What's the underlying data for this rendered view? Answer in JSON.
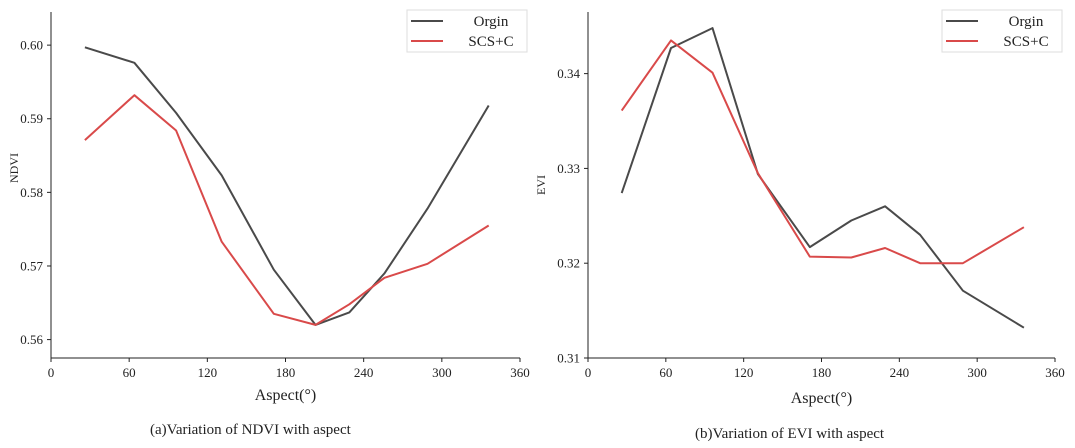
{
  "chart_data": [
    {
      "type": "line",
      "xlabel": "Aspect(°)",
      "ylabel": "NDVI",
      "caption": "(a)Variation of NDVI with aspect",
      "xlim": [
        0,
        360
      ],
      "ylim": [
        0.5575,
        0.6045
      ],
      "xticks": [
        "0",
        "60",
        "120",
        "180",
        "240",
        "300",
        "360"
      ],
      "yticks": [
        "0.56",
        "0.57",
        "0.58",
        "0.59",
        "0.60"
      ],
      "legend_position": "top-right",
      "x": [
        26,
        64,
        96,
        131,
        171,
        203,
        229,
        256,
        289,
        336
      ],
      "series": [
        {
          "name": "Orgin",
          "color": "#4a4a4a",
          "values": [
            0.5997,
            0.5976,
            0.5908,
            0.5823,
            0.5695,
            0.562,
            0.5637,
            0.569,
            0.5778,
            0.5918
          ]
        },
        {
          "name": "SCS+C",
          "color": "#d94a4a",
          "values": [
            0.5871,
            0.5932,
            0.5884,
            0.5733,
            0.5635,
            0.562,
            0.5648,
            0.5684,
            0.5703,
            0.5755
          ]
        }
      ]
    },
    {
      "type": "line",
      "xlabel": "Aspect(°)",
      "ylabel": "EVI",
      "caption": "(b)Variation of EVI with aspect",
      "xlim": [
        0,
        360
      ],
      "ylim": [
        0.31,
        0.3465
      ],
      "xticks": [
        "0",
        "60",
        "120",
        "180",
        "240",
        "300",
        "360"
      ],
      "yticks": [
        "0.31",
        "0.32",
        "0.33",
        "0.34"
      ],
      "legend_position": "top-right",
      "x": [
        26,
        64,
        96,
        131,
        171,
        203,
        229,
        256,
        289,
        336
      ],
      "series": [
        {
          "name": "Orgin",
          "color": "#4a4a4a",
          "values": [
            0.3274,
            0.3427,
            0.3448,
            0.3294,
            0.3217,
            0.3245,
            0.326,
            0.323,
            0.3171,
            0.3132
          ]
        },
        {
          "name": "SCS+C",
          "color": "#d94a4a",
          "values": [
            0.3361,
            0.3435,
            0.3401,
            0.3295,
            0.3207,
            0.3206,
            0.3216,
            0.32,
            0.32,
            0.3238
          ]
        }
      ]
    }
  ]
}
